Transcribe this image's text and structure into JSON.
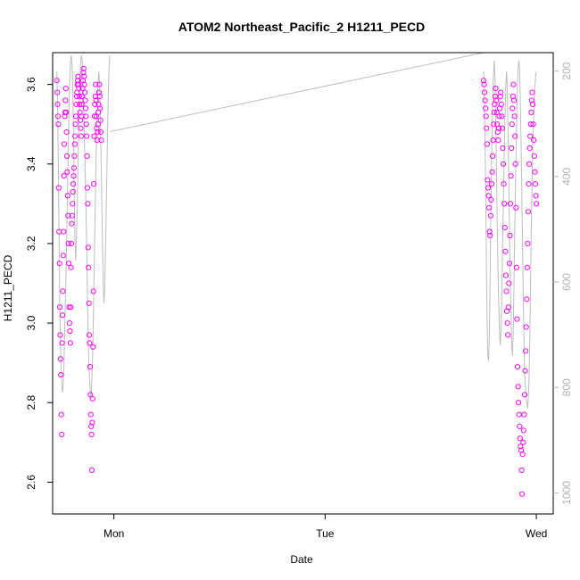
{
  "chart_data": {
    "type": "scatter",
    "title": "ATOM2 Northeast_Pacific_2 H1211_PECD",
    "xlabel": "Date",
    "ylabel": "H1211_PECD",
    "x_axis": {
      "unit": "days",
      "range": [
        -0.29,
        2.08
      ],
      "ticks": [
        {
          "value": 0,
          "label": "Mon"
        },
        {
          "value": 1,
          "label": "Tue"
        },
        {
          "value": 2,
          "label": "Wed"
        }
      ]
    },
    "y_axis": {
      "range": [
        2.52,
        3.68
      ],
      "ticks": [
        2.6,
        2.8,
        3.0,
        3.2,
        3.4,
        3.6
      ],
      "tick_labels": [
        "2.6",
        "2.8",
        "3.0",
        "3.2",
        "3.4",
        "3.6"
      ]
    },
    "y2_axis": {
      "label": "",
      "color": "#b3b3b3",
      "range": [
        1040,
        165
      ],
      "ticks": [
        200,
        400,
        600,
        800,
        1000
      ],
      "tick_labels": [
        "200",
        "400",
        "600",
        "800",
        "1000"
      ]
    },
    "grid": false,
    "colors": {
      "points": "#ff00ff",
      "pressure_line": "#bebebe",
      "axes": "#000000"
    },
    "series": [
      {
        "role": "H1211_PECD (left axis, circles)",
        "flights": [
          {
            "x_start": -0.27,
            "x_end": -0.06,
            "values": [
              3.61,
              3.58,
              3.55,
              3.52,
              3.5,
              3.34,
              3.23,
              3.15,
              3.04,
              2.97,
              2.91,
              2.87,
              2.77,
              2.72,
              2.95,
              3.02,
              3.08,
              3.17,
              3.23,
              3.37,
              3.45,
              3.52,
              3.53,
              3.56,
              3.59,
              3.53,
              3.48,
              3.42,
              3.38,
              3.32,
              3.27,
              3.2,
              3.15,
              3.04,
              3.0,
              2.98,
              2.95,
              3.04,
              3.14,
              3.2,
              3.25,
              3.27,
              3.3,
              3.33,
              3.35,
              3.37,
              3.39,
              3.42,
              3.45,
              3.47,
              3.5,
              3.52,
              3.55,
              3.57,
              3.58,
              3.6,
              3.61,
              3.62,
              3.6,
              3.59,
              3.57,
              3.55,
              3.53,
              3.51,
              3.49,
              3.47,
              3.52,
              3.55,
              3.57,
              3.59,
              3.61,
              3.63,
              3.64,
              3.62,
              3.6,
              3.58,
              3.56,
              3.54,
              3.52,
              3.5,
              3.47,
              3.42,
              3.34,
              3.3,
              3.19,
              3.14,
              3.05,
              2.97,
              2.95,
              2.89,
              2.82,
              2.77,
              2.74,
              2.72,
              2.63,
              2.75,
              2.81,
              2.94,
              3.08,
              3.35,
              3.47,
              3.52,
              3.55,
              3.57,
              3.6,
              3.56,
              3.52,
              3.49,
              3.46,
              3.48,
              3.5,
              3.53,
              3.55,
              3.58,
              3.6,
              3.57,
              3.54,
              3.51,
              3.48,
              3.46
            ]
          },
          {
            "x_start": 1.75,
            "x_end": 2.0,
            "values": [
              3.61,
              3.6,
              3.58,
              3.56,
              3.54,
              3.52,
              3.49,
              3.45,
              3.36,
              3.34,
              3.32,
              3.29,
              3.23,
              3.22,
              3.27,
              3.31,
              3.35,
              3.38,
              3.42,
              3.46,
              3.5,
              3.53,
              3.55,
              3.57,
              3.59,
              3.56,
              3.53,
              3.5,
              3.48,
              3.46,
              3.49,
              3.52,
              3.54,
              3.57,
              3.58,
              3.55,
              3.52,
              3.49,
              3.44,
              3.4,
              3.35,
              3.3,
              3.24,
              3.18,
              3.12,
              3.08,
              3.03,
              3.0,
              2.97,
              3.04,
              3.1,
              3.15,
              3.22,
              3.3,
              3.37,
              3.44,
              3.5,
              3.54,
              3.57,
              3.6,
              3.56,
              3.52,
              3.47,
              3.4,
              3.29,
              3.14,
              3.01,
              2.89,
              2.84,
              2.8,
              2.77,
              2.74,
              2.71,
              2.69,
              2.68,
              2.63,
              2.57,
              2.67,
              2.7,
              2.73,
              2.77,
              2.82,
              2.88,
              2.93,
              2.99,
              3.06,
              3.14,
              3.2,
              3.28,
              3.35,
              3.4,
              3.44,
              3.47,
              3.5,
              3.53,
              3.56,
              3.58,
              3.55,
              3.5,
              3.46,
              3.42,
              3.38,
              3.35,
              3.32,
              3.3
            ]
          }
        ]
      },
      {
        "role": "pressure (right axis, grey line)",
        "flights": [
          {
            "x_start": -0.27,
            "x_end": -0.02,
            "values": [
              200,
              260,
              380,
              520,
              640,
              720,
              770,
              800,
              810,
              790,
              750,
              680,
              620,
              560,
              480,
              400,
              330,
              260,
              210,
              180,
              170,
              190,
              240,
              320,
              430,
              520,
              560,
              520,
              470,
              400,
              320,
              260,
              210,
              180,
              170,
              180,
              210,
              260,
              320,
              380,
              440,
              520,
              600,
              680,
              740,
              780,
              800,
              820,
              800,
              760,
              700,
              620,
              540,
              460,
              380,
              310,
              260,
              220,
              200,
              230,
              280,
              360,
              440,
              520,
              600,
              640,
              620,
              560,
              480,
              400,
              320,
              250,
              200,
              170
            ]
          },
          {
            "x_start": -0.02,
            "x_end": 1.75,
            "values": [
              315,
              165
            ]
          },
          {
            "x_start": 1.75,
            "x_end": 2.0,
            "values": [
              200,
              250,
              330,
              430,
              560,
              680,
              740,
              750,
              700,
              600,
              480,
              380,
              300,
              240,
              200,
              180,
              220,
              300,
              400,
              500,
              580,
              640,
              690,
              720,
              700,
              640,
              560,
              480,
              400,
              330,
              270,
              220,
              200,
              240,
              320,
              420,
              520,
              600,
              660,
              720,
              740,
              700,
              620,
              520,
              430,
              350,
              280,
              220,
              190,
              180,
              200,
              260,
              340,
              440,
              540,
              640,
              720,
              780,
              800,
              820,
              830,
              840,
              820,
              780,
              700,
              600,
              500,
              420,
              350,
              300,
              260,
              230,
              210,
              200
            ]
          }
        ]
      }
    ]
  }
}
